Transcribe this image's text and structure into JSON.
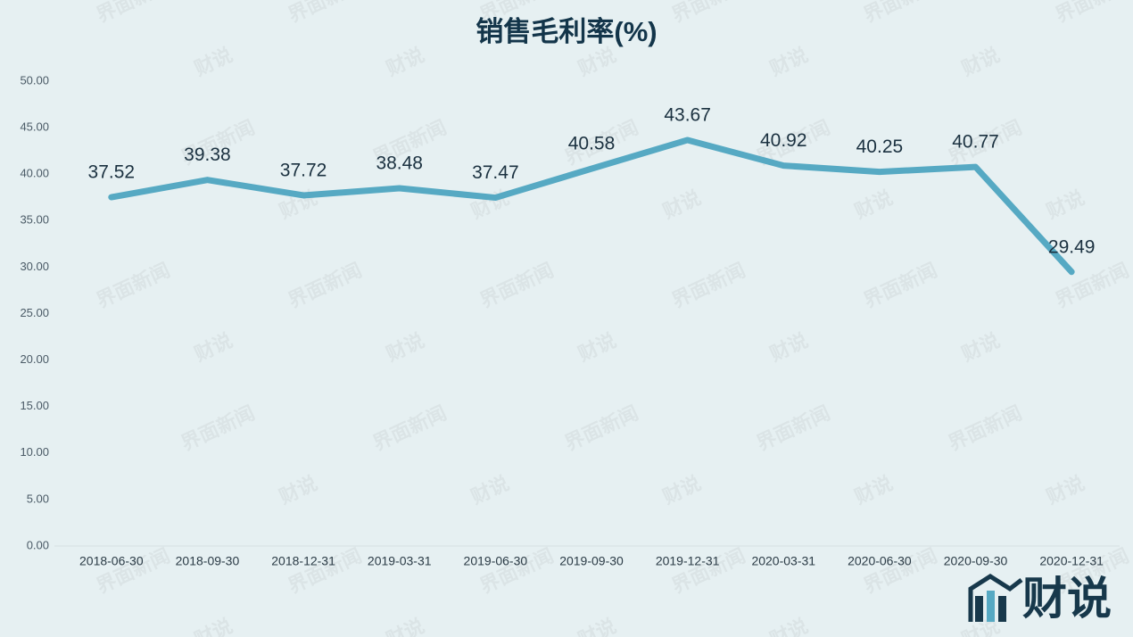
{
  "chart_data": {
    "type": "line",
    "title": "销售毛利率(%)",
    "categories": [
      "2018-06-30",
      "2018-09-30",
      "2018-12-31",
      "2019-03-31",
      "2019-06-30",
      "2019-09-30",
      "2019-12-31",
      "2020-03-31",
      "2020-06-30",
      "2020-09-30",
      "2020-12-31"
    ],
    "values": [
      37.52,
      39.38,
      37.72,
      38.48,
      37.47,
      40.58,
      43.67,
      40.92,
      40.25,
      40.77,
      29.49
    ],
    "color": "#56a9c3",
    "ylim": [
      0,
      50
    ],
    "yticks": [
      {
        "value": 0,
        "label": "0.00"
      },
      {
        "value": 5,
        "label": "5.00"
      },
      {
        "value": 10,
        "label": "10.00"
      },
      {
        "value": 15,
        "label": "15.00"
      },
      {
        "value": 20,
        "label": "20.00"
      },
      {
        "value": 25,
        "label": "25.00"
      },
      {
        "value": 30,
        "label": "30.00"
      },
      {
        "value": 35,
        "label": "35.00"
      },
      {
        "value": 40,
        "label": "40.00"
      },
      {
        "value": 45,
        "label": "45.00"
      },
      {
        "value": 50,
        "label": "50.00"
      }
    ],
    "grid": false,
    "watermarks": [
      "界面新闻",
      "财说"
    ],
    "logo": "财说"
  }
}
